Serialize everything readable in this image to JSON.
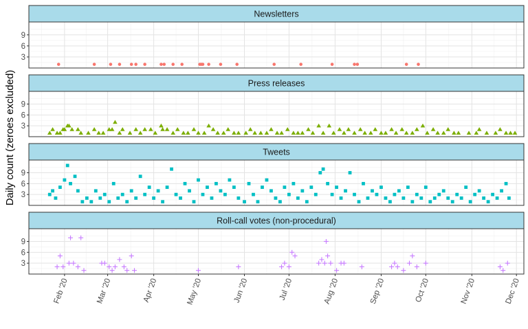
{
  "chart_data": {
    "type": "scatter",
    "ylabel": "Daily count (zeroes excluded)",
    "xlabel": "",
    "x_ticks": [
      "Feb '20",
      "Mar '20",
      "Apr '20",
      "May '20",
      "Jun '20",
      "Jul '20",
      "Aug '20",
      "Sep '20",
      "Oct '20",
      "Nov '20",
      "Dec '20"
    ],
    "x_tick_dates": [
      "2020-02-01",
      "2020-03-01",
      "2020-04-01",
      "2020-05-01",
      "2020-06-01",
      "2020-07-01",
      "2020-08-01",
      "2020-09-01",
      "2020-10-01",
      "2020-11-01",
      "2020-12-01"
    ],
    "xlim": [
      "2020-01-08",
      "2020-12-06"
    ],
    "y_ticks": [
      3,
      6,
      9
    ],
    "ylim": [
      0,
      12.5
    ],
    "grid": true,
    "facets": [
      {
        "title": "Newsletters",
        "marker": "circle",
        "color": "#f8766d",
        "points": [
          [
            "2020-01-28",
            1
          ],
          [
            "2020-02-21",
            1
          ],
          [
            "2020-03-03",
            1
          ],
          [
            "2020-03-09",
            1
          ],
          [
            "2020-03-17",
            1
          ],
          [
            "2020-03-20",
            1
          ],
          [
            "2020-03-26",
            1
          ],
          [
            "2020-04-06",
            1
          ],
          [
            "2020-04-08",
            1
          ],
          [
            "2020-04-14",
            1
          ],
          [
            "2020-04-20",
            1
          ],
          [
            "2020-05-02",
            1
          ],
          [
            "2020-05-03",
            1
          ],
          [
            "2020-05-04",
            1
          ],
          [
            "2020-05-08",
            1
          ],
          [
            "2020-05-16",
            1
          ],
          [
            "2020-05-27",
            1
          ],
          [
            "2020-06-21",
            1
          ],
          [
            "2020-07-09",
            1
          ],
          [
            "2020-07-30",
            1
          ],
          [
            "2020-08-14",
            1
          ],
          [
            "2020-08-16",
            1
          ],
          [
            "2020-09-18",
            1
          ],
          [
            "2020-09-26",
            1
          ]
        ]
      },
      {
        "title": "Press releases",
        "marker": "triangle",
        "color": "#7cae00",
        "points": [
          [
            "2020-01-22",
            1
          ],
          [
            "2020-01-24",
            2
          ],
          [
            "2020-01-27",
            1
          ],
          [
            "2020-01-29",
            1
          ],
          [
            "2020-01-31",
            2
          ],
          [
            "2020-02-01",
            2
          ],
          [
            "2020-02-03",
            3
          ],
          [
            "2020-02-04",
            3
          ],
          [
            "2020-02-06",
            2
          ],
          [
            "2020-02-10",
            2
          ],
          [
            "2020-02-12",
            1
          ],
          [
            "2020-02-17",
            1
          ],
          [
            "2020-02-21",
            2
          ],
          [
            "2020-02-24",
            1
          ],
          [
            "2020-02-27",
            1
          ],
          [
            "2020-03-02",
            2
          ],
          [
            "2020-03-04",
            2
          ],
          [
            "2020-03-06",
            4
          ],
          [
            "2020-03-09",
            1
          ],
          [
            "2020-03-11",
            2
          ],
          [
            "2020-03-16",
            1
          ],
          [
            "2020-03-20",
            2
          ],
          [
            "2020-03-23",
            1
          ],
          [
            "2020-03-26",
            2
          ],
          [
            "2020-03-30",
            2
          ],
          [
            "2020-04-02",
            1
          ],
          [
            "2020-04-06",
            3
          ],
          [
            "2020-04-07",
            2
          ],
          [
            "2020-04-10",
            2
          ],
          [
            "2020-04-14",
            1
          ],
          [
            "2020-04-17",
            2
          ],
          [
            "2020-04-21",
            1
          ],
          [
            "2020-04-24",
            1
          ],
          [
            "2020-04-28",
            2
          ],
          [
            "2020-05-01",
            1
          ],
          [
            "2020-05-05",
            1
          ],
          [
            "2020-05-08",
            3
          ],
          [
            "2020-05-11",
            2
          ],
          [
            "2020-05-14",
            1
          ],
          [
            "2020-05-18",
            1
          ],
          [
            "2020-05-21",
            2
          ],
          [
            "2020-05-25",
            1
          ],
          [
            "2020-05-28",
            1
          ],
          [
            "2020-06-02",
            1
          ],
          [
            "2020-06-05",
            2
          ],
          [
            "2020-06-08",
            1
          ],
          [
            "2020-06-12",
            1
          ],
          [
            "2020-06-16",
            1
          ],
          [
            "2020-06-19",
            2
          ],
          [
            "2020-06-23",
            1
          ],
          [
            "2020-06-26",
            1
          ],
          [
            "2020-06-30",
            2
          ],
          [
            "2020-07-04",
            1
          ],
          [
            "2020-07-07",
            1
          ],
          [
            "2020-07-10",
            1
          ],
          [
            "2020-07-14",
            2
          ],
          [
            "2020-07-17",
            1
          ],
          [
            "2020-07-21",
            3
          ],
          [
            "2020-07-24",
            1
          ],
          [
            "2020-07-28",
            3
          ],
          [
            "2020-07-31",
            1
          ],
          [
            "2020-08-04",
            2
          ],
          [
            "2020-08-07",
            1
          ],
          [
            "2020-08-10",
            2
          ],
          [
            "2020-08-14",
            1
          ],
          [
            "2020-08-18",
            2
          ],
          [
            "2020-08-21",
            1
          ],
          [
            "2020-08-25",
            1
          ],
          [
            "2020-08-28",
            2
          ],
          [
            "2020-09-01",
            1
          ],
          [
            "2020-09-04",
            1
          ],
          [
            "2020-09-08",
            2
          ],
          [
            "2020-09-11",
            1
          ],
          [
            "2020-09-15",
            2
          ],
          [
            "2020-09-18",
            1
          ],
          [
            "2020-09-22",
            1
          ],
          [
            "2020-09-25",
            2
          ],
          [
            "2020-09-29",
            3
          ],
          [
            "2020-10-02",
            1
          ],
          [
            "2020-10-06",
            2
          ],
          [
            "2020-10-09",
            1
          ],
          [
            "2020-10-13",
            1
          ],
          [
            "2020-10-16",
            2
          ],
          [
            "2020-10-20",
            1
          ],
          [
            "2020-10-23",
            1
          ],
          [
            "2020-10-30",
            1
          ],
          [
            "2020-11-04",
            1
          ],
          [
            "2020-11-06",
            2
          ],
          [
            "2020-11-11",
            1
          ],
          [
            "2020-11-17",
            1
          ],
          [
            "2020-11-20",
            2
          ],
          [
            "2020-11-24",
            1
          ],
          [
            "2020-11-27",
            1
          ],
          [
            "2020-11-30",
            1
          ]
        ]
      },
      {
        "title": "Tweets",
        "marker": "square",
        "color": "#00bfc4",
        "points": [
          [
            "2020-01-22",
            3
          ],
          [
            "2020-01-24",
            4
          ],
          [
            "2020-01-26",
            2
          ],
          [
            "2020-01-29",
            5
          ],
          [
            "2020-02-01",
            7
          ],
          [
            "2020-02-03",
            11
          ],
          [
            "2020-02-05",
            6
          ],
          [
            "2020-02-08",
            8
          ],
          [
            "2020-02-10",
            4
          ],
          [
            "2020-02-13",
            1
          ],
          [
            "2020-02-16",
            2
          ],
          [
            "2020-02-19",
            1
          ],
          [
            "2020-02-22",
            4
          ],
          [
            "2020-02-25",
            2
          ],
          [
            "2020-02-28",
            3
          ],
          [
            "2020-03-02",
            1
          ],
          [
            "2020-03-05",
            6
          ],
          [
            "2020-03-08",
            2
          ],
          [
            "2020-03-11",
            3
          ],
          [
            "2020-03-14",
            1
          ],
          [
            "2020-03-17",
            4
          ],
          [
            "2020-03-20",
            2
          ],
          [
            "2020-03-23",
            8
          ],
          [
            "2020-03-26",
            3
          ],
          [
            "2020-03-29",
            5
          ],
          [
            "2020-04-01",
            2
          ],
          [
            "2020-04-04",
            4
          ],
          [
            "2020-04-07",
            1
          ],
          [
            "2020-04-10",
            5
          ],
          [
            "2020-04-13",
            10
          ],
          [
            "2020-04-16",
            3
          ],
          [
            "2020-04-19",
            2
          ],
          [
            "2020-04-22",
            6
          ],
          [
            "2020-04-25",
            4
          ],
          [
            "2020-04-28",
            1
          ],
          [
            "2020-05-01",
            7
          ],
          [
            "2020-05-04",
            3
          ],
          [
            "2020-05-07",
            5
          ],
          [
            "2020-05-10",
            2
          ],
          [
            "2020-05-13",
            6
          ],
          [
            "2020-05-16",
            4
          ],
          [
            "2020-05-19",
            3
          ],
          [
            "2020-05-22",
            7
          ],
          [
            "2020-05-25",
            5
          ],
          [
            "2020-05-28",
            2
          ],
          [
            "2020-06-01",
            1
          ],
          [
            "2020-06-04",
            6
          ],
          [
            "2020-06-07",
            3
          ],
          [
            "2020-06-10",
            1
          ],
          [
            "2020-06-13",
            5
          ],
          [
            "2020-06-16",
            7
          ],
          [
            "2020-06-19",
            4
          ],
          [
            "2020-06-22",
            2
          ],
          [
            "2020-06-25",
            1
          ],
          [
            "2020-06-28",
            5
          ],
          [
            "2020-07-01",
            3
          ],
          [
            "2020-07-04",
            6
          ],
          [
            "2020-07-07",
            2
          ],
          [
            "2020-07-10",
            4
          ],
          [
            "2020-07-13",
            1
          ],
          [
            "2020-07-16",
            5
          ],
          [
            "2020-07-19",
            3
          ],
          [
            "2020-07-22",
            9
          ],
          [
            "2020-07-24",
            10
          ],
          [
            "2020-07-27",
            6
          ],
          [
            "2020-07-30",
            3
          ],
          [
            "2020-08-02",
            5
          ],
          [
            "2020-08-05",
            2
          ],
          [
            "2020-08-08",
            4
          ],
          [
            "2020-08-11",
            9
          ],
          [
            "2020-08-14",
            3
          ],
          [
            "2020-08-17",
            1
          ],
          [
            "2020-08-20",
            6
          ],
          [
            "2020-08-23",
            2
          ],
          [
            "2020-08-26",
            4
          ],
          [
            "2020-08-29",
            3
          ],
          [
            "2020-09-01",
            5
          ],
          [
            "2020-09-04",
            2
          ],
          [
            "2020-09-07",
            1
          ],
          [
            "2020-09-10",
            3
          ],
          [
            "2020-09-13",
            4
          ],
          [
            "2020-09-16",
            2
          ],
          [
            "2020-09-19",
            5
          ],
          [
            "2020-09-22",
            1
          ],
          [
            "2020-09-25",
            3
          ],
          [
            "2020-09-28",
            2
          ],
          [
            "2020-10-01",
            5
          ],
          [
            "2020-10-04",
            1
          ],
          [
            "2020-10-07",
            2
          ],
          [
            "2020-10-10",
            3
          ],
          [
            "2020-10-13",
            4
          ],
          [
            "2020-10-16",
            2
          ],
          [
            "2020-10-19",
            1
          ],
          [
            "2020-10-22",
            3
          ],
          [
            "2020-10-25",
            2
          ],
          [
            "2020-10-28",
            5
          ],
          [
            "2020-10-31",
            1
          ],
          [
            "2020-11-03",
            3
          ],
          [
            "2020-11-06",
            4
          ],
          [
            "2020-11-09",
            2
          ],
          [
            "2020-11-12",
            1
          ],
          [
            "2020-11-15",
            3
          ],
          [
            "2020-11-18",
            2
          ],
          [
            "2020-11-21",
            4
          ],
          [
            "2020-11-24",
            6
          ],
          [
            "2020-11-26",
            2
          ]
        ]
      },
      {
        "title": "Roll-call votes (non-procedural)",
        "marker": "cross",
        "color": "#c77cff",
        "points": [
          [
            "2020-01-27",
            2
          ],
          [
            "2020-01-29",
            5
          ],
          [
            "2020-01-31",
            2
          ],
          [
            "2020-02-04",
            3
          ],
          [
            "2020-02-05",
            10
          ],
          [
            "2020-02-07",
            3
          ],
          [
            "2020-02-10",
            2
          ],
          [
            "2020-02-12",
            10
          ],
          [
            "2020-02-14",
            1
          ],
          [
            "2020-02-26",
            3
          ],
          [
            "2020-02-28",
            3
          ],
          [
            "2020-03-02",
            2
          ],
          [
            "2020-03-04",
            1
          ],
          [
            "2020-03-06",
            2
          ],
          [
            "2020-03-09",
            4
          ],
          [
            "2020-03-12",
            2
          ],
          [
            "2020-03-14",
            1
          ],
          [
            "2020-03-17",
            5
          ],
          [
            "2020-03-19",
            1
          ],
          [
            "2020-05-01",
            1
          ],
          [
            "2020-05-28",
            2
          ],
          [
            "2020-06-26",
            2
          ],
          [
            "2020-06-28",
            3
          ],
          [
            "2020-07-01",
            2
          ],
          [
            "2020-07-03",
            6
          ],
          [
            "2020-07-05",
            5
          ],
          [
            "2020-07-21",
            3
          ],
          [
            "2020-07-23",
            4
          ],
          [
            "2020-07-25",
            3
          ],
          [
            "2020-07-26",
            9
          ],
          [
            "2020-07-27",
            5
          ],
          [
            "2020-07-29",
            3
          ],
          [
            "2020-08-02",
            1
          ],
          [
            "2020-08-05",
            3
          ],
          [
            "2020-08-07",
            3
          ],
          [
            "2020-08-19",
            2
          ],
          [
            "2020-09-08",
            2
          ],
          [
            "2020-09-10",
            3
          ],
          [
            "2020-09-12",
            2
          ],
          [
            "2020-09-16",
            1
          ],
          [
            "2020-09-20",
            3
          ],
          [
            "2020-09-22",
            5
          ],
          [
            "2020-09-25",
            2
          ],
          [
            "2020-10-01",
            3
          ],
          [
            "2020-11-20",
            2
          ],
          [
            "2020-11-22",
            1
          ],
          [
            "2020-11-25",
            3
          ]
        ]
      }
    ]
  }
}
